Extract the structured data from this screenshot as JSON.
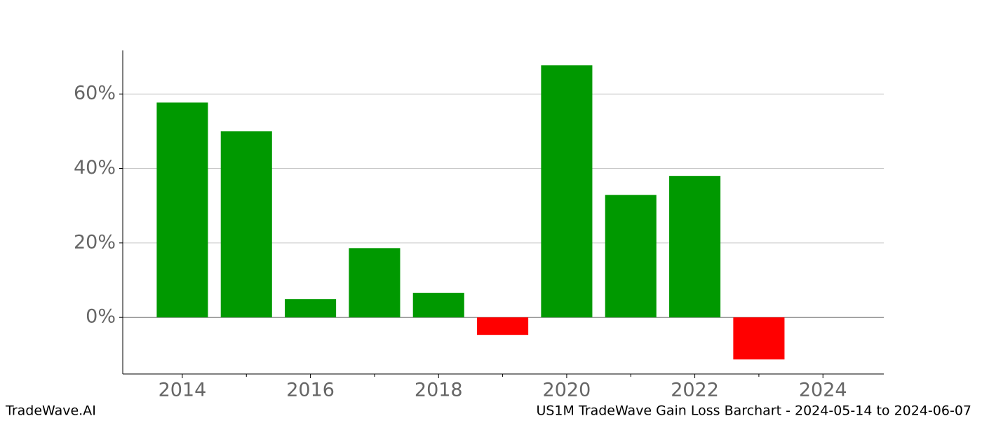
{
  "chart_data": {
    "type": "bar",
    "title": "US1M TradeWave Gain Loss Barchart - 2024-05-14 to 2024-06-07",
    "watermark": "TradeWave.AI",
    "x": [
      2014,
      2015,
      2016,
      2017,
      2018,
      2019,
      2020,
      2021,
      2022,
      2023
    ],
    "values": [
      57.7,
      50.0,
      4.9,
      18.6,
      6.6,
      -4.7,
      67.7,
      32.9,
      38.0,
      -11.3
    ],
    "colors": [
      "#009900",
      "#009900",
      "#009900",
      "#009900",
      "#009900",
      "#ff0000",
      "#009900",
      "#009900",
      "#009900",
      "#ff0000"
    ],
    "xlim": [
      2013.07,
      2024.95
    ],
    "xticks": [
      2014,
      2016,
      2018,
      2020,
      2022,
      2024
    ],
    "xminorticks": [
      2015,
      2017,
      2019,
      2021,
      2023
    ],
    "ylim": [
      -15.2,
      71.7
    ],
    "yticks": [
      {
        "value": 0,
        "label": "0%"
      },
      {
        "value": 20,
        "label": "20%"
      },
      {
        "value": 40,
        "label": "40%"
      },
      {
        "value": 60,
        "label": "60%"
      }
    ],
    "grid": true
  }
}
